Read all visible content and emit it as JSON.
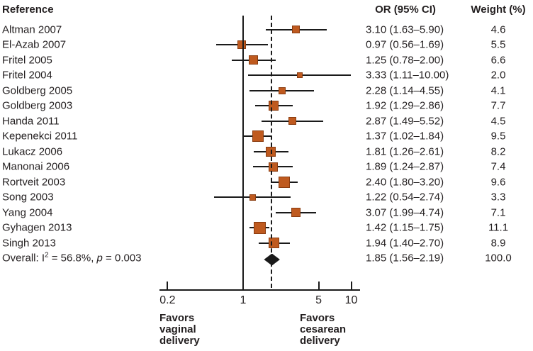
{
  "columns": {
    "reference": "Reference",
    "or": "OR (95% CI)",
    "weight": "Weight (%)"
  },
  "chart_data": {
    "type": "forest",
    "x_axis": {
      "scale": "log",
      "ticks": [
        0.2,
        1,
        5,
        10
      ],
      "tick_labels": [
        "0.2",
        "1",
        "5",
        "10"
      ]
    },
    "reference_line_value": 1,
    "pooled_dashed_line_value": 1.85,
    "studies": [
      {
        "label": "Altman 2007",
        "or": 3.1,
        "ci_low": 1.63,
        "ci_high": 5.9,
        "or_text": "3.10 (1.63–5.90)",
        "weight": 4.6,
        "weight_text": "4.6"
      },
      {
        "label": "El-Azab 2007",
        "or": 0.97,
        "ci_low": 0.56,
        "ci_high": 1.69,
        "or_text": "0.97 (0.56–1.69)",
        "weight": 5.5,
        "weight_text": "5.5"
      },
      {
        "label": "Fritel 2005",
        "or": 1.25,
        "ci_low": 0.78,
        "ci_high": 2.0,
        "or_text": "1.25 (0.78–2.00)",
        "weight": 6.6,
        "weight_text": "6.6"
      },
      {
        "label": "Fritel 2004",
        "or": 3.33,
        "ci_low": 1.11,
        "ci_high": 10.0,
        "or_text": "3.33 (1.11–10.00)",
        "weight": 2.0,
        "weight_text": "2.0"
      },
      {
        "label": "Goldberg 2005",
        "or": 2.28,
        "ci_low": 1.14,
        "ci_high": 4.55,
        "or_text": "2.28 (1.14–4.55)",
        "weight": 4.1,
        "weight_text": "4.1"
      },
      {
        "label": "Goldberg 2003",
        "or": 1.92,
        "ci_low": 1.29,
        "ci_high": 2.86,
        "or_text": "1.92 (1.29–2.86)",
        "weight": 7.7,
        "weight_text": "7.7"
      },
      {
        "label": "Handa 2011",
        "or": 2.87,
        "ci_low": 1.49,
        "ci_high": 5.52,
        "or_text": "2.87 (1.49–5.52)",
        "weight": 4.5,
        "weight_text": "4.5"
      },
      {
        "label": "Kepenekci 2011",
        "or": 1.37,
        "ci_low": 1.02,
        "ci_high": 1.84,
        "or_text": "1.37 (1.02–1.84)",
        "weight": 9.5,
        "weight_text": "9.5"
      },
      {
        "label": "Lukacz 2006",
        "or": 1.81,
        "ci_low": 1.26,
        "ci_high": 2.61,
        "or_text": "1.81 (1.26–2.61)",
        "weight": 8.2,
        "weight_text": "8.2"
      },
      {
        "label": "Manonai 2006",
        "or": 1.89,
        "ci_low": 1.24,
        "ci_high": 2.87,
        "or_text": "1.89 (1.24–2.87)",
        "weight": 7.4,
        "weight_text": "7.4"
      },
      {
        "label": "Rortveit 2003",
        "or": 2.4,
        "ci_low": 1.8,
        "ci_high": 3.2,
        "or_text": "2.40 (1.80–3.20)",
        "weight": 9.6,
        "weight_text": "9.6"
      },
      {
        "label": "Song 2003",
        "or": 1.22,
        "ci_low": 0.54,
        "ci_high": 2.74,
        "or_text": "1.22 (0.54–2.74)",
        "weight": 3.3,
        "weight_text": "3.3"
      },
      {
        "label": "Yang 2004",
        "or": 3.07,
        "ci_low": 1.99,
        "ci_high": 4.74,
        "or_text": "3.07 (1.99–4.74)",
        "weight": 7.1,
        "weight_text": "7.1"
      },
      {
        "label": "Gyhagen 2013",
        "or": 1.42,
        "ci_low": 1.15,
        "ci_high": 1.75,
        "or_text": "1.42 (1.15–1.75)",
        "weight": 11.1,
        "weight_text": "11.1"
      },
      {
        "label": "Singh 2013",
        "or": 1.94,
        "ci_low": 1.4,
        "ci_high": 2.7,
        "or_text": "1.94 (1.40–2.70)",
        "weight": 8.9,
        "weight_text": "8.9"
      }
    ],
    "overall": {
      "label_pre": "Overall: I",
      "label_sup": "2",
      "label_mid": " = 56.8%, ",
      "label_italic": "p",
      "label_post": " = 0.003",
      "or": 1.85,
      "ci_low": 1.56,
      "ci_high": 2.19,
      "or_text": "1.85 (1.56–2.19)",
      "weight_text": "100.0"
    },
    "favors_left_lines": [
      "Favors",
      "vaginal",
      "delivery"
    ],
    "favors_right_lines": [
      "Favors",
      "cesarean",
      "delivery"
    ],
    "marker_color": "#bf5a1f",
    "line_color": "#1a1a1a"
  }
}
